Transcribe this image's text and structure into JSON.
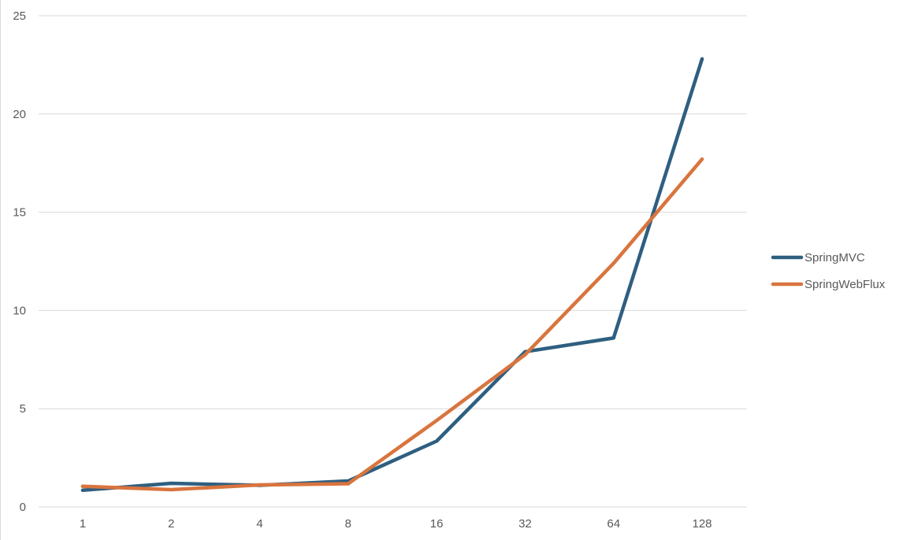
{
  "chart_data": {
    "type": "line",
    "title": "",
    "xlabel": "",
    "ylabel": "",
    "categories": [
      "1",
      "2",
      "4",
      "8",
      "16",
      "32",
      "64",
      "128"
    ],
    "ylim": [
      0,
      25
    ],
    "yticks": [
      0,
      5,
      10,
      15,
      20,
      25
    ],
    "grid": true,
    "legend_position": "right",
    "series": [
      {
        "name": "SpringMVC",
        "color": "#2e5f80",
        "values": [
          0.85,
          1.2,
          1.1,
          1.32,
          3.35,
          7.9,
          8.6,
          22.8
        ]
      },
      {
        "name": "SpringWebFlux",
        "color": "#d9743e",
        "values": [
          1.05,
          0.88,
          1.12,
          1.18,
          4.4,
          7.75,
          12.4,
          17.7
        ]
      }
    ]
  }
}
